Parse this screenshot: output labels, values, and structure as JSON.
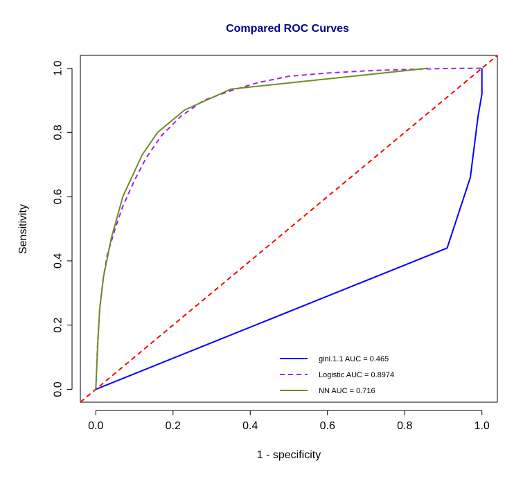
{
  "chart_data": {
    "type": "line",
    "title": "Compared ROC Curves",
    "xlabel": "1 - specificity",
    "ylabel": "Sensitivity",
    "xlim": [
      -0.04,
      1.04
    ],
    "ylim": [
      -0.04,
      1.04
    ],
    "x_ticks": [
      0.0,
      0.2,
      0.4,
      0.6,
      0.8,
      1.0
    ],
    "x_tick_labels": [
      "0.0",
      "0.2",
      "0.4",
      "0.6",
      "0.8",
      "1.0"
    ],
    "y_ticks": [
      0.0,
      0.2,
      0.4,
      0.6,
      0.8,
      1.0
    ],
    "y_tick_labels": [
      "0.0",
      "0.2",
      "0.4",
      "0.6",
      "0.8",
      "1.0"
    ],
    "grid": false,
    "legend_position": "bottom-right",
    "series": [
      {
        "name": "gini.1.1  AUC = 0.465",
        "color": "#0000ff",
        "dash": "solid",
        "x": [
          0.0,
          0.91,
          0.97,
          0.99,
          1.0,
          1.0
        ],
        "y": [
          0.0,
          0.44,
          0.66,
          0.85,
          0.92,
          1.0
        ]
      },
      {
        "name": "Logistic   AUC =  0.8974",
        "color": "#a020f0",
        "dash": "dashed",
        "x": [
          0.0,
          0.005,
          0.01,
          0.02,
          0.03,
          0.05,
          0.07,
          0.1,
          0.13,
          0.17,
          0.22,
          0.28,
          0.35,
          0.42,
          0.5,
          0.6,
          0.7,
          0.8,
          0.9,
          1.0
        ],
        "y": [
          0.0,
          0.15,
          0.25,
          0.35,
          0.42,
          0.5,
          0.57,
          0.65,
          0.72,
          0.79,
          0.85,
          0.9,
          0.93,
          0.955,
          0.975,
          0.985,
          0.992,
          0.996,
          0.999,
          1.0
        ]
      },
      {
        "name": "NN AUC = 0.716",
        "color": "#6b8e23",
        "dash": "solid",
        "x": [
          0.0,
          0.005,
          0.01,
          0.02,
          0.04,
          0.07,
          0.12,
          0.16,
          0.23,
          0.35,
          0.86
        ],
        "y": [
          0.0,
          0.14,
          0.25,
          0.35,
          0.47,
          0.6,
          0.73,
          0.8,
          0.87,
          0.935,
          1.0
        ]
      }
    ],
    "reference_line": {
      "x": [
        -0.04,
        1.04
      ],
      "y": [
        -0.04,
        1.04
      ],
      "color": "#ff0000",
      "dash": "dashed"
    }
  }
}
